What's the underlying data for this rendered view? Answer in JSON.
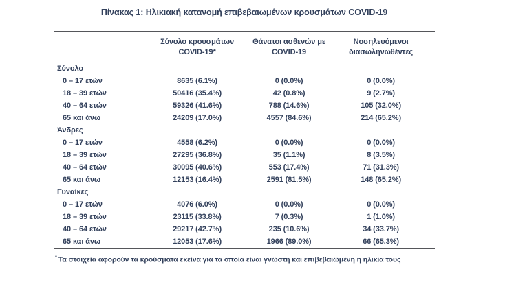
{
  "page": {
    "title": "Πίνακας 1: Ηλικιακή κατανομή επιβεβαιωμένων κρουσμάτων COVID-19"
  },
  "table": {
    "col_headers": [
      {
        "line1": "Σύνολο κρουσμάτων",
        "line2": "COVID-19*"
      },
      {
        "line1": "Θάνατοι ασθενών με",
        "line2": "COVID-19"
      },
      {
        "line1": "Νοσηλευόμενοι",
        "line2": "διασωληνωθέντες"
      }
    ],
    "sections": [
      {
        "label": "Σύνολο",
        "rows": [
          {
            "label": "0 – 17 ετών",
            "cases": "8635 (6.1%)",
            "deaths": "0 (0.0%)",
            "intubated": "0 (0.0%)"
          },
          {
            "label": "18 – 39 ετών",
            "cases": "50416 (35.4%)",
            "deaths": "42 (0.8%)",
            "intubated": "9 (2.7%)"
          },
          {
            "label": "40 – 64 ετών",
            "cases": "59326 (41.6%)",
            "deaths": "788 (14.6%)",
            "intubated": "105 (32.0%)"
          },
          {
            "label": "65 και άνω",
            "cases": "24209 (17.0%)",
            "deaths": "4557 (84.6%)",
            "intubated": "214 (65.2%)"
          }
        ]
      },
      {
        "label": "Άνδρες",
        "rows": [
          {
            "label": "0 – 17 ετών",
            "cases": "4558 (6.2%)",
            "deaths": "0 (0.0%)",
            "intubated": "0 (0.0%)"
          },
          {
            "label": "18 – 39 ετών",
            "cases": "27295 (36.8%)",
            "deaths": "35 (1.1%)",
            "intubated": "8 (3.5%)"
          },
          {
            "label": "40 – 64 ετών",
            "cases": "30095 (40.6%)",
            "deaths": "553 (17.4%)",
            "intubated": "71 (31.3%)"
          },
          {
            "label": "65 και άνω",
            "cases": "12153 (16.4%)",
            "deaths": "2591 (81.5%)",
            "intubated": "148 (65.2%)"
          }
        ]
      },
      {
        "label": "Γυναίκες",
        "rows": [
          {
            "label": "0 – 17 ετών",
            "cases": "4076 (6.0%)",
            "deaths": "0 (0.0%)",
            "intubated": "0 (0.0%)"
          },
          {
            "label": "18 – 39 ετών",
            "cases": "23115 (33.8%)",
            "deaths": "7 (0.3%)",
            "intubated": "1 (1.0%)"
          },
          {
            "label": "40 – 64 ετών",
            "cases": "29217 (42.7%)",
            "deaths": "235 (10.6%)",
            "intubated": "34 (33.7%)"
          },
          {
            "label": "65 και άνω",
            "cases": "12053 (17.6%)",
            "deaths": "1966 (89.0%)",
            "intubated": "66 (65.3%)"
          }
        ]
      }
    ]
  },
  "footnote": {
    "marker": "*",
    "text": "Τα στοιχεία αφορούν τα κρούσματα εκείνα για τα οποία είναι γνωστή και επιβεβαιωμένη η ηλικία τους"
  },
  "colors": {
    "text": "#33415c",
    "rule": "#55565a"
  }
}
